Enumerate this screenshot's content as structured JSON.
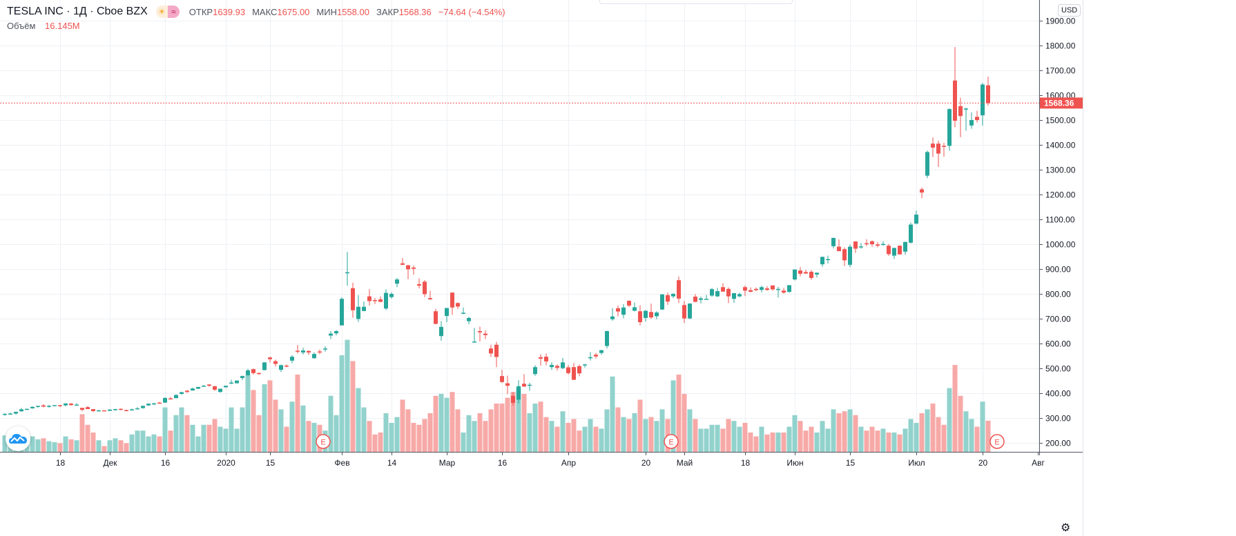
{
  "header": {
    "symbol": "TESLA INC · 1Д · Cboe BZX",
    "open_label": "ОТКР",
    "open": "1639.93",
    "high_label": "МАКС",
    "high": "1675.00",
    "low_label": "МИН",
    "low": "1558.00",
    "close_label": "ЗАКР",
    "close": "1568.36",
    "change": "−74.64 (−4.54%)",
    "volume_label": "Объём",
    "volume": "16.145M"
  },
  "currency_button": "USD",
  "colors": {
    "up": "#26a69a",
    "down": "#ef5350",
    "up_volume": "#92d2cc",
    "down_volume": "#f7a9a7",
    "grid": "#edf0f4"
  },
  "chart_data": {
    "type": "candlestick",
    "last_price": 1568.36,
    "last_price_label": "1568.36",
    "price_range": [
      160,
      1960
    ],
    "price_ticks": [
      "200.00",
      "300.00",
      "400.00",
      "500.00",
      "600.00",
      "700.00",
      "800.00",
      "900.00",
      "1000.00",
      "1100.00",
      "1200.00",
      "1300.00",
      "1400.00",
      "1500.00",
      "1600.00",
      "1700.00",
      "1800.00",
      "1900.00"
    ],
    "time_labels": [
      {
        "bar": 10,
        "text": "18"
      },
      {
        "bar": 19,
        "text": "Дек"
      },
      {
        "bar": 29,
        "text": "16"
      },
      {
        "bar": 40,
        "text": "2020"
      },
      {
        "bar": 48,
        "text": "15"
      },
      {
        "bar": 61,
        "text": "Фев"
      },
      {
        "bar": 70,
        "text": "14"
      },
      {
        "bar": 80,
        "text": "Мар"
      },
      {
        "bar": 90,
        "text": "16"
      },
      {
        "bar": 102,
        "text": "Апр"
      },
      {
        "bar": 116,
        "text": "20"
      },
      {
        "bar": 123,
        "text": "Май"
      },
      {
        "bar": 134,
        "text": "18"
      },
      {
        "bar": 143,
        "text": "Июн"
      },
      {
        "bar": 153,
        "text": "15"
      },
      {
        "bar": 165,
        "text": "Июл"
      },
      {
        "bar": 177,
        "text": "20"
      },
      {
        "bar": 187,
        "text": "Авг"
      }
    ],
    "earnings_markers": [
      {
        "bar": 58,
        "text": "E"
      },
      {
        "bar": 121,
        "text": "E"
      },
      {
        "bar": 180,
        "text": "E"
      }
    ],
    "ohlcv_fields": [
      "open",
      "high",
      "low",
      "close",
      "volume_millions"
    ],
    "bars": [
      [
        313,
        319,
        309,
        317,
        8.5
      ],
      [
        316,
        322,
        314,
        318,
        7
      ],
      [
        318,
        326,
        314,
        325,
        10
      ],
      [
        327,
        341,
        326,
        335,
        11
      ],
      [
        334,
        338,
        332,
        337,
        6
      ],
      [
        339,
        347,
        338,
        345,
        8
      ],
      [
        346,
        350,
        341,
        349,
        6.5
      ],
      [
        351,
        356,
        343,
        346,
        7
      ],
      [
        346,
        353,
        342,
        349,
        5.5
      ],
      [
        350,
        352,
        348,
        352,
        5
      ],
      [
        352,
        353,
        344,
        349,
        4.5
      ],
      [
        351,
        359,
        347,
        359,
        8
      ],
      [
        358,
        361,
        350,
        352,
        6.5
      ],
      [
        353,
        360,
        353,
        354,
        6
      ],
      [
        341,
        341,
        327,
        333,
        19.5
      ],
      [
        344,
        348,
        336,
        336,
        14
      ],
      [
        336,
        336,
        325,
        328,
        10
      ],
      [
        331,
        333,
        328,
        331,
        6
      ],
      [
        331,
        331,
        327,
        329,
        3
      ],
      [
        329,
        336,
        328,
        334,
        6
      ],
      [
        332,
        337,
        330,
        336,
        7
      ],
      [
        337,
        339,
        331,
        333,
        6
      ],
      [
        332,
        334,
        327,
        330,
        4.5
      ],
      [
        331,
        338,
        330,
        335,
        9
      ],
      [
        337,
        344,
        336,
        339,
        11
      ],
      [
        340,
        350,
        338,
        349,
        11
      ],
      [
        351,
        358,
        349,
        358,
        8
      ],
      [
        356,
        362,
        352,
        359,
        9
      ],
      [
        362,
        365,
        358,
        358,
        8
      ],
      [
        362,
        383,
        361,
        381,
        23
      ],
      [
        379,
        385,
        375,
        378,
        11
      ],
      [
        380,
        395,
        380,
        393,
        19
      ],
      [
        397,
        406,
        394,
        404,
        23
      ],
      [
        410,
        413,
        401,
        405,
        19
      ],
      [
        411,
        422,
        410,
        419,
        14
      ],
      [
        418,
        426,
        417,
        425,
        8
      ],
      [
        427,
        433,
        426,
        430,
        14
      ],
      [
        435,
        436,
        426,
        430,
        14
      ],
      [
        428,
        430,
        409,
        414,
        17
      ],
      [
        405,
        418,
        402,
        418,
        13
      ],
      [
        424,
        430,
        421,
        430,
        12
      ],
      [
        441,
        454,
        436,
        443,
        23
      ],
      [
        440,
        451,
        440,
        451,
        12
      ],
      [
        461,
        471,
        453,
        469,
        23
      ],
      [
        473,
        498,
        468,
        492,
        40
      ],
      [
        497,
        499,
        475,
        481,
        32
      ],
      [
        481,
        484,
        475,
        478,
        19
      ],
      [
        493,
        525,
        492,
        524,
        35
      ],
      [
        544,
        547,
        524,
        537,
        37
      ],
      [
        529,
        535,
        507,
        518,
        27
      ],
      [
        494,
        515,
        485,
        513,
        22
      ],
      [
        511,
        516,
        504,
        510,
        13
      ],
      [
        531,
        553,
        521,
        547,
        26
      ],
      [
        571,
        594,
        560,
        569,
        40
      ],
      [
        564,
        583,
        556,
        572,
        24
      ],
      [
        570,
        573,
        554,
        564,
        16
      ],
      [
        541,
        564,
        539,
        558,
        15
      ],
      [
        568,
        576,
        557,
        566,
        14
      ],
      [
        576,
        589,
        567,
        580,
        11
      ],
      [
        632,
        650,
        618,
        640,
        29
      ],
      [
        641,
        654,
        633,
        650,
        19
      ],
      [
        673,
        786,
        673,
        780,
        50
      ],
      [
        883,
        969,
        833,
        887,
        58
      ],
      [
        823,
        845,
        704,
        734,
        47
      ],
      [
        699,
        795,
        687,
        748,
        33
      ],
      [
        731,
        769,
        730,
        748,
        23
      ],
      [
        790,
        819,
        753,
        771,
        16
      ],
      [
        775,
        784,
        759,
        774,
        9
      ],
      [
        778,
        790,
        766,
        768,
        10
      ],
      [
        741,
        818,
        735,
        804,
        20
      ],
      [
        787,
        806,
        781,
        800,
        15
      ],
      [
        841,
        864,
        827,
        858,
        18
      ],
      [
        923,
        944,
        916,
        917,
        27
      ],
      [
        915,
        917,
        859,
        899,
        22
      ],
      [
        906,
        914,
        877,
        901,
        15
      ],
      [
        839,
        863,
        822,
        833,
        14
      ],
      [
        849,
        856,
        787,
        799,
        17
      ],
      [
        783,
        812,
        776,
        778,
        20
      ],
      [
        730,
        740,
        678,
        679,
        29
      ],
      [
        630,
        690,
        611,
        667,
        30
      ],
      [
        711,
        743,
        686,
        743,
        28
      ],
      [
        805,
        806,
        716,
        745,
        31
      ],
      [
        763,
        766,
        739,
        749,
        22
      ],
      [
        723,
        745,
        718,
        724,
        10
      ],
      [
        690,
        708,
        678,
        703,
        19
      ],
      [
        605,
        663,
        605,
        608,
        16
      ],
      [
        650,
        668,
        608,
        645,
        20
      ],
      [
        640,
        653,
        618,
        634,
        16
      ],
      [
        580,
        595,
        546,
        560,
        22
      ],
      [
        595,
        607,
        505,
        546,
        25
      ],
      [
        469,
        494,
        442,
        445,
        25
      ],
      [
        440,
        471,
        396,
        430,
        28
      ],
      [
        389,
        404,
        350,
        361,
        31
      ],
      [
        374,
        452,
        358,
        428,
        33
      ],
      [
        438,
        477,
        425,
        427,
        30
      ],
      [
        433,
        442,
        410,
        434,
        20
      ],
      [
        477,
        513,
        470,
        505,
        25
      ],
      [
        545,
        557,
        511,
        539,
        26
      ],
      [
        547,
        560,
        512,
        528,
        18
      ],
      [
        505,
        525,
        494,
        514,
        16
      ],
      [
        510,
        516,
        491,
        502,
        13
      ],
      [
        501,
        542,
        497,
        524,
        21
      ],
      [
        504,
        513,
        475,
        481,
        15
      ],
      [
        505,
        522,
        453,
        454,
        17
      ],
      [
        509,
        515,
        468,
        480,
        11
      ],
      [
        512,
        518,
        503,
        516,
        13
      ],
      [
        545,
        566,
        532,
        545,
        17
      ],
      [
        555,
        562,
        540,
        548,
        13
      ],
      [
        562,
        575,
        555,
        573,
        12
      ],
      [
        590,
        652,
        580,
        650,
        22
      ],
      [
        698,
        742,
        692,
        709,
        39
      ],
      [
        742,
        753,
        710,
        729,
        23
      ],
      [
        716,
        759,
        702,
        745,
        18
      ],
      [
        772,
        774,
        747,
        753,
        17
      ],
      [
        732,
        765,
        730,
        746,
        20
      ],
      [
        730,
        754,
        673,
        686,
        27
      ],
      [
        703,
        734,
        688,
        732,
        17
      ],
      [
        727,
        761,
        699,
        705,
        18
      ],
      [
        710,
        730,
        698,
        725,
        16
      ],
      [
        737,
        799,
        735,
        798,
        22
      ],
      [
        795,
        805,
        756,
        769,
        17
      ],
      [
        790,
        803,
        783,
        800,
        37
      ],
      [
        855,
        870,
        763,
        781,
        40
      ],
      [
        755,
        772,
        683,
        701,
        30
      ],
      [
        701,
        762,
        698,
        761,
        22
      ],
      [
        789,
        799,
        766,
        768,
        17
      ],
      [
        776,
        789,
        761,
        782,
        12
      ],
      [
        777,
        796,
        778,
        780,
        12
      ],
      [
        793,
        824,
        788,
        819,
        14
      ],
      [
        790,
        824,
        787,
        811,
        14
      ],
      [
        827,
        843,
        809,
        809,
        12
      ],
      [
        820,
        826,
        763,
        790,
        17
      ],
      [
        780,
        803,
        764,
        803,
        16
      ],
      [
        790,
        805,
        786,
        799,
        13
      ],
      [
        827,
        834,
        791,
        813,
        15
      ],
      [
        815,
        826,
        807,
        808,
        10
      ],
      [
        820,
        826,
        811,
        815,
        8
      ],
      [
        816,
        833,
        806,
        827,
        13
      ],
      [
        822,
        831,
        812,
        816,
        9
      ],
      [
        834,
        834,
        813,
        818,
        10
      ],
      [
        820,
        828,
        785,
        820,
        10
      ],
      [
        813,
        824,
        801,
        805,
        10
      ],
      [
        808,
        835,
        804,
        835,
        13
      ],
      [
        858,
        899,
        854,
        898,
        19
      ],
      [
        894,
        908,
        871,
        881,
        16
      ],
      [
        888,
        897,
        880,
        882,
        11
      ],
      [
        889,
        895,
        857,
        864,
        13
      ],
      [
        878,
        886,
        866,
        885,
        10
      ],
      [
        919,
        950,
        909,
        949,
        16
      ],
      [
        940,
        954,
        922,
        940,
        12
      ],
      [
        992,
        1027,
        983,
        1025,
        22
      ],
      [
        990,
        1019,
        972,
        972,
        20
      ],
      [
        980,
        987,
        912,
        935,
        21
      ],
      [
        917,
        998,
        908,
        990,
        22
      ],
      [
        1011,
        1012,
        965,
        982,
        19
      ],
      [
        987,
        1005,
        982,
        991,
        13
      ],
      [
        1004,
        1020,
        992,
        1003,
        11
      ],
      [
        1012,
        1015,
        990,
        1000,
        13
      ],
      [
        999,
        1008,
        987,
        994,
        11
      ],
      [
        998,
        1012,
        994,
        1001,
        12
      ],
      [
        994,
        1001,
        953,
        960,
        10
      ],
      [
        954,
        986,
        941,
        985,
        10
      ],
      [
        994,
        995,
        958,
        959,
        9
      ],
      [
        970,
        1010,
        958,
        1009,
        12
      ],
      [
        1006,
        1087,
        1003,
        1079,
        17
      ],
      [
        1083,
        1135,
        1080,
        1119,
        15
      ],
      [
        1221,
        1228,
        1185,
        1208,
        20
      ],
      [
        1276,
        1377,
        1266,
        1371,
        22
      ],
      [
        1405,
        1430,
        1351,
        1389,
        25
      ],
      [
        1405,
        1417,
        1311,
        1365,
        18
      ],
      [
        1396,
        1408,
        1352,
        1394,
        14
      ],
      [
        1396,
        1548,
        1376,
        1544,
        33
      ],
      [
        1659,
        1794,
        1471,
        1497,
        45
      ],
      [
        1556,
        1590,
        1431,
        1516,
        29
      ],
      [
        1543,
        1550,
        1457,
        1546,
        21
      ],
      [
        1478,
        1531,
        1465,
        1500,
        17
      ],
      [
        1513,
        1537,
        1490,
        1500,
        13
      ],
      [
        1519,
        1650,
        1477,
        1643,
        26
      ],
      [
        1639.93,
        1675,
        1558,
        1568.36,
        16.145
      ]
    ]
  }
}
